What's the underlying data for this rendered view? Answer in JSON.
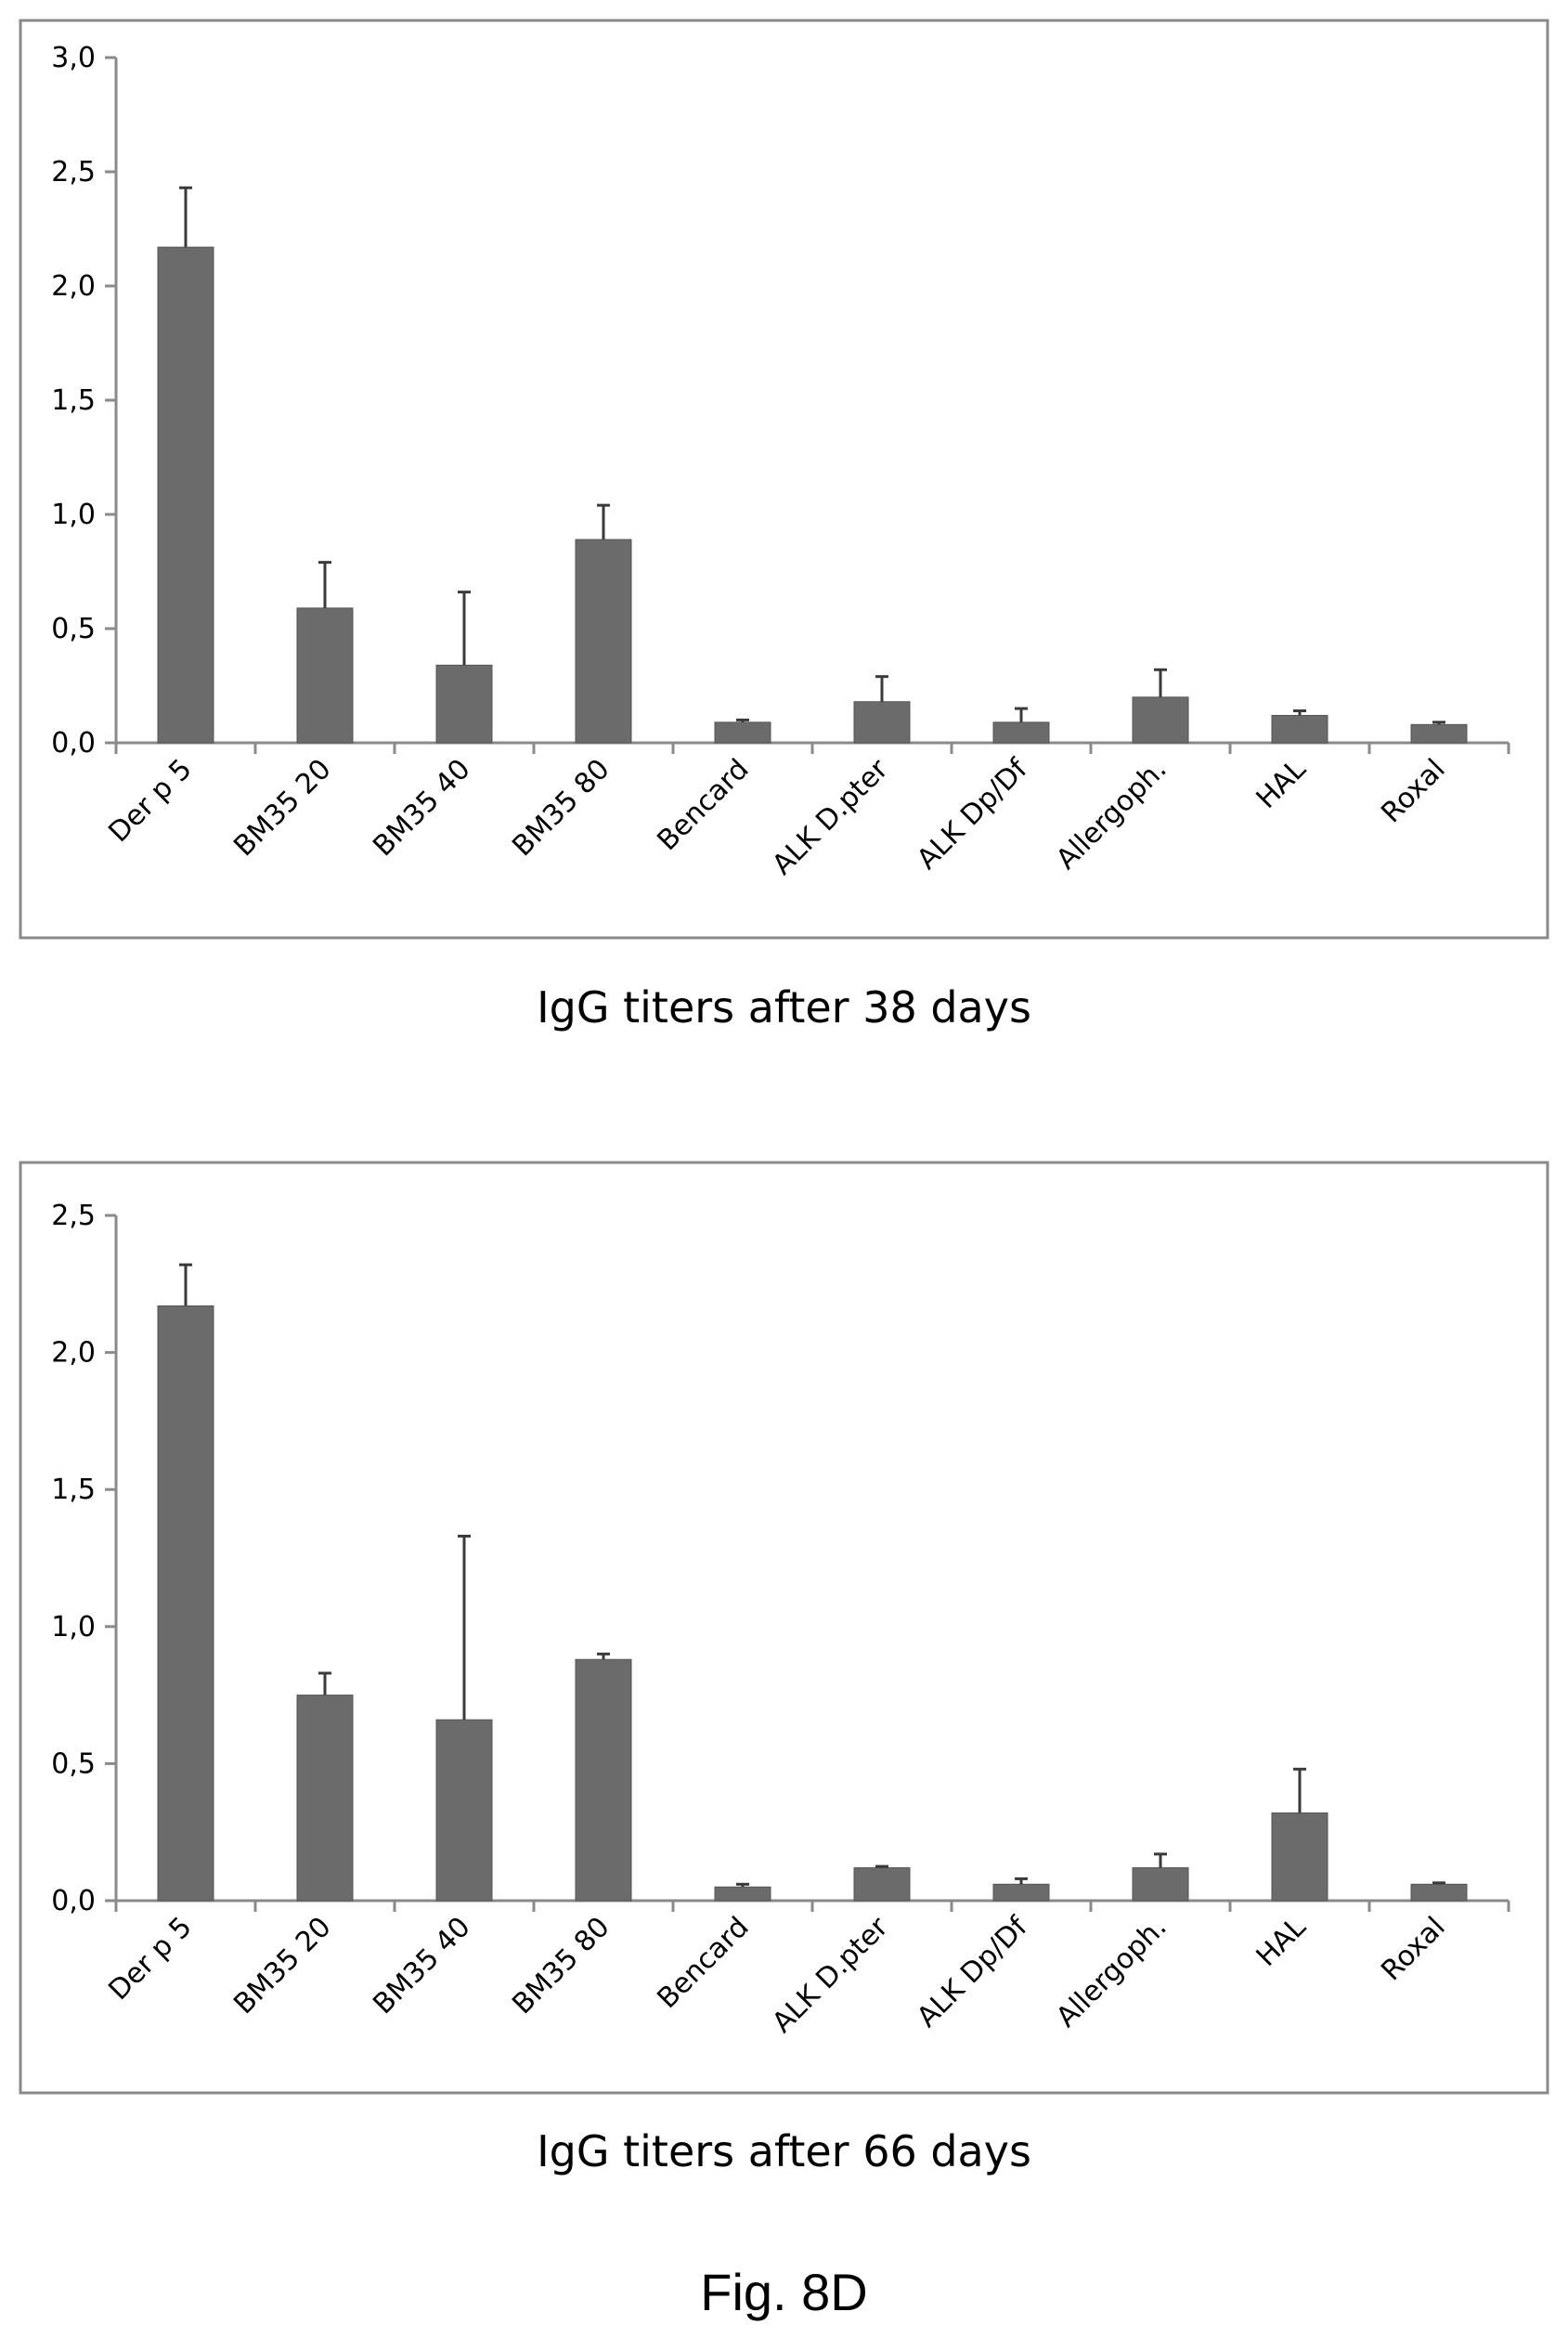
{
  "figure_label": "Fig. 8D",
  "colors": {
    "bar": "#6b6b6b",
    "bar_stroke": "#555555",
    "axis": "#8a8a8a",
    "frame": "#8a8a8a"
  },
  "chart_data": [
    {
      "type": "bar",
      "title": "IgG titers after 38 days",
      "categories": [
        "Der p 5",
        "BM35 20",
        "BM35 40",
        "BM35 80",
        "Bencard",
        "ALK D.pter",
        "ALK Dp/Df",
        "Allergoph.",
        "HAL",
        "Roxal"
      ],
      "values": [
        2.17,
        0.59,
        0.34,
        0.89,
        0.09,
        0.18,
        0.09,
        0.2,
        0.12,
        0.08
      ],
      "errors": [
        0.26,
        0.2,
        0.32,
        0.15,
        0.01,
        0.11,
        0.06,
        0.12,
        0.02,
        0.01
      ],
      "ylim": [
        0,
        3.0
      ],
      "yticks": [
        "0,0",
        "0,5",
        "1,0",
        "1,5",
        "2,0",
        "2,5",
        "3,0"
      ],
      "ytick_values": [
        0,
        0.5,
        1.0,
        1.5,
        2.0,
        2.5,
        3.0
      ],
      "grid": false,
      "xlabel": "",
      "ylabel": ""
    },
    {
      "type": "bar",
      "title": "IgG titers after 66 days",
      "categories": [
        "Der p 5",
        "BM35 20",
        "BM35 40",
        "BM35 80",
        "Bencard",
        "ALK D.pter",
        "ALK Dp/Df",
        "Allergoph.",
        "HAL",
        "Roxal"
      ],
      "values": [
        2.17,
        0.75,
        0.66,
        0.88,
        0.05,
        0.12,
        0.06,
        0.12,
        0.32,
        0.06
      ],
      "errors": [
        0.15,
        0.08,
        0.67,
        0.02,
        0.01,
        0.005,
        0.02,
        0.05,
        0.16,
        0.005
      ],
      "ylim": [
        0,
        2.5
      ],
      "yticks": [
        "0,0",
        "0,5",
        "1,0",
        "1,5",
        "2,0",
        "2,5"
      ],
      "ytick_values": [
        0,
        0.5,
        1.0,
        1.5,
        2.0,
        2.5
      ],
      "grid": false,
      "xlabel": "",
      "ylabel": ""
    }
  ]
}
